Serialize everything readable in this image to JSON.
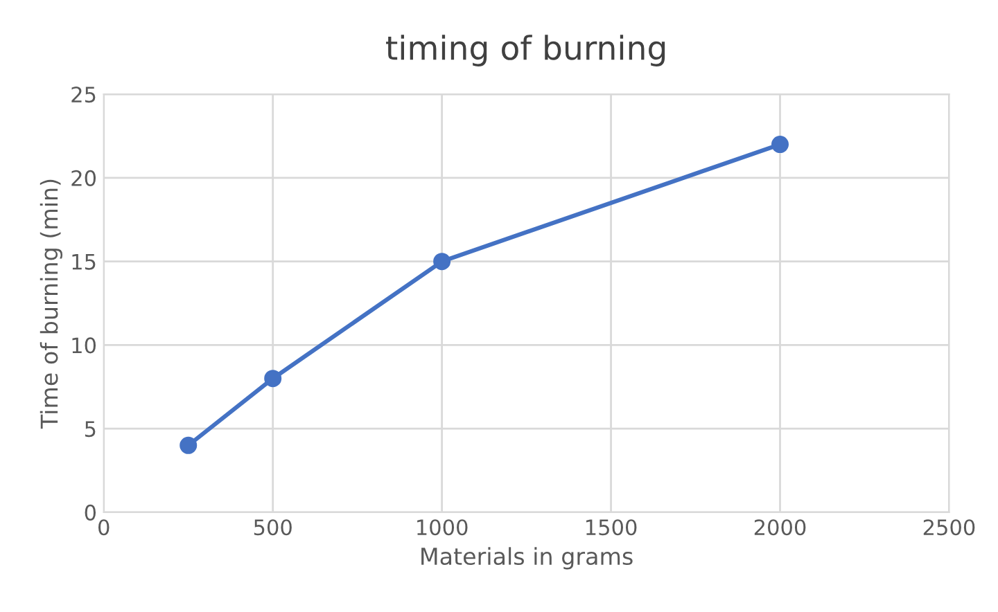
{
  "chart_data": {
    "type": "line",
    "title": "timing of burning",
    "xlabel": "Materials in grams",
    "ylabel": "Time of burning (min)",
    "x": [
      250,
      500,
      1000,
      2000
    ],
    "series": [
      {
        "color": "#4472c4",
        "values": [
          4,
          8,
          15,
          22
        ]
      }
    ],
    "xlim": [
      0,
      2500
    ],
    "xticks": [
      0,
      500,
      1000,
      1500,
      2000,
      2500
    ],
    "ylim": [
      0,
      25
    ],
    "yticks": [
      0,
      5,
      10,
      15,
      20,
      25
    ],
    "grid": true,
    "marker": "circle",
    "line_style": "solid"
  }
}
